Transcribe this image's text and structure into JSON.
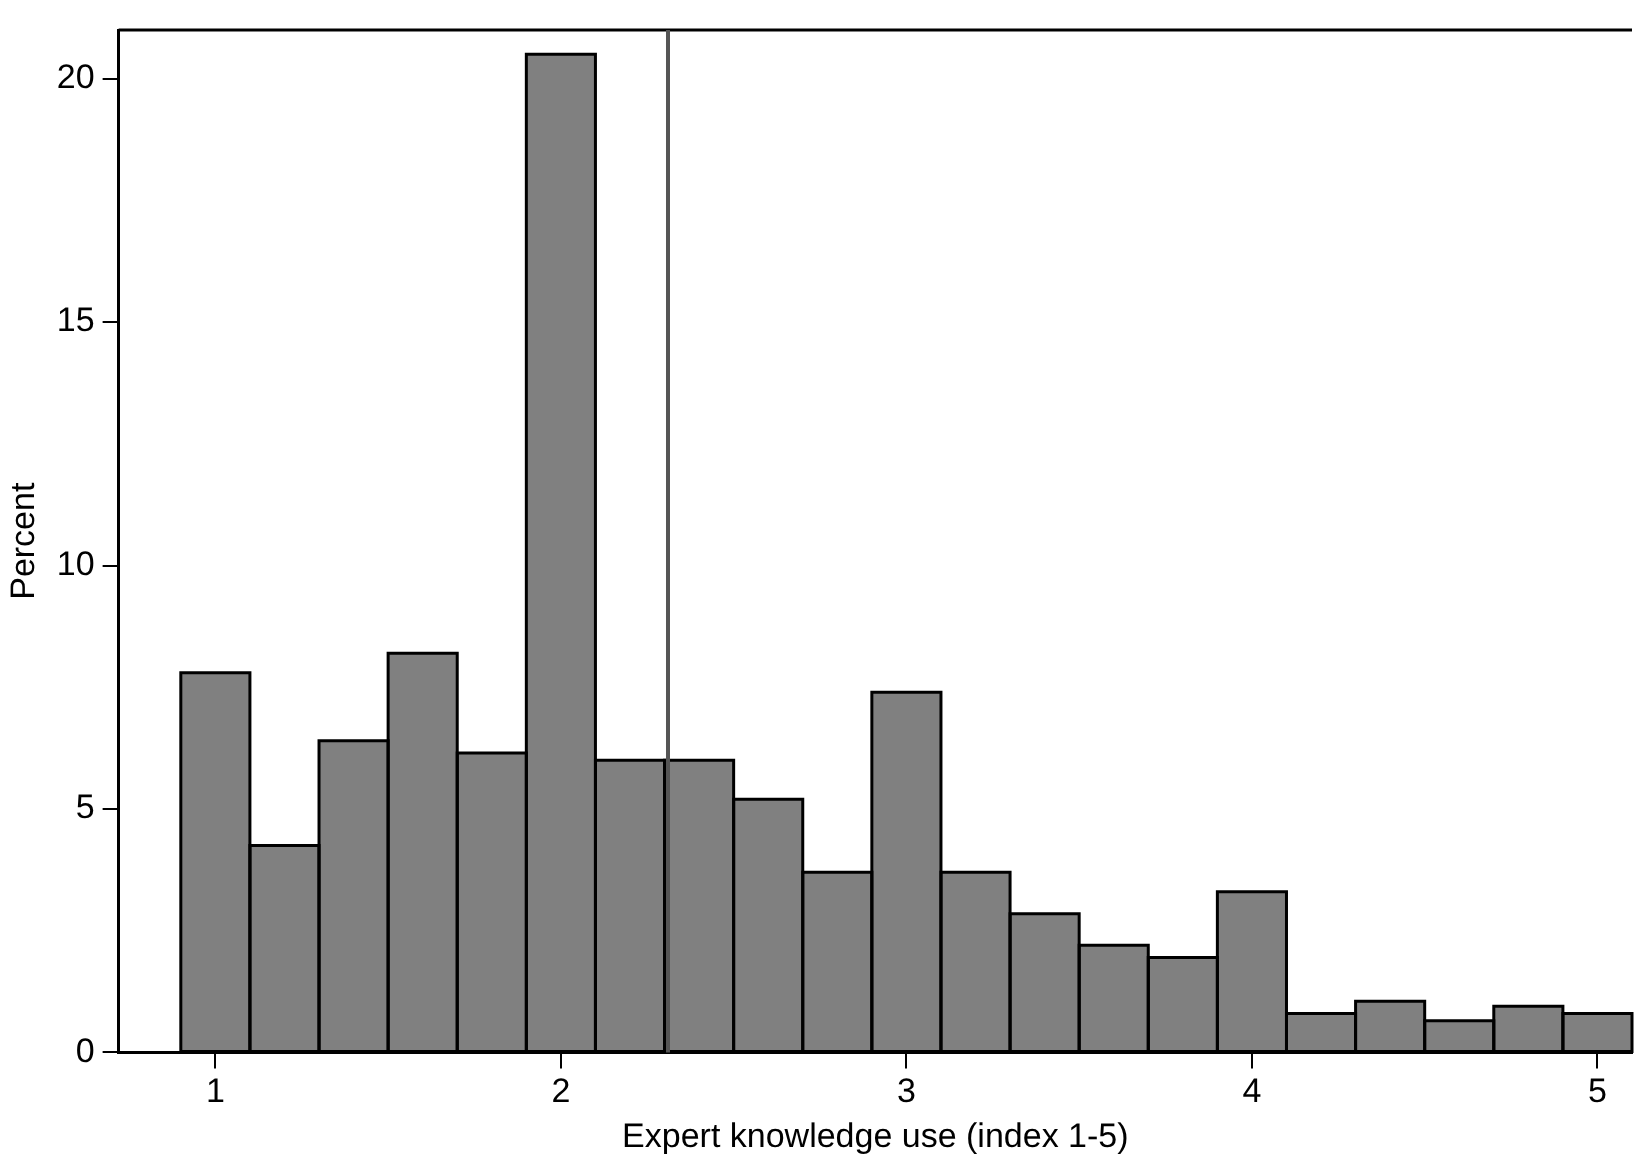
{
  "chart_data": {
    "type": "histogram",
    "xlabel": "Expert knowledge use (index 1-5)",
    "ylabel": "Percent",
    "bins": [
      0.9,
      1.1,
      1.3,
      1.5,
      1.7,
      1.9,
      2.1,
      2.3,
      2.5,
      2.7,
      2.9,
      3.1,
      3.3,
      3.5,
      3.7,
      3.9,
      4.1,
      4.3,
      4.5,
      4.7,
      4.9,
      5.1
    ],
    "values": [
      7.8,
      4.25,
      6.4,
      8.2,
      6.15,
      20.5,
      6.0,
      6.0,
      5.2,
      3.7,
      7.4,
      3.7,
      2.85,
      2.2,
      1.95,
      3.3,
      0.8,
      1.05,
      0.65,
      0.95,
      0.8
    ],
    "color": "#808080",
    "xlim": [
      0.72,
      5.1
    ],
    "xticks": [
      1,
      2,
      3,
      4,
      5
    ],
    "ylim": [
      0,
      21
    ],
    "yticks": [
      0,
      5,
      10,
      15,
      20
    ],
    "grid": false,
    "legend": false,
    "ref_lines": [
      {
        "axis": "x",
        "value": 2.31,
        "color": "#555555"
      }
    ]
  }
}
